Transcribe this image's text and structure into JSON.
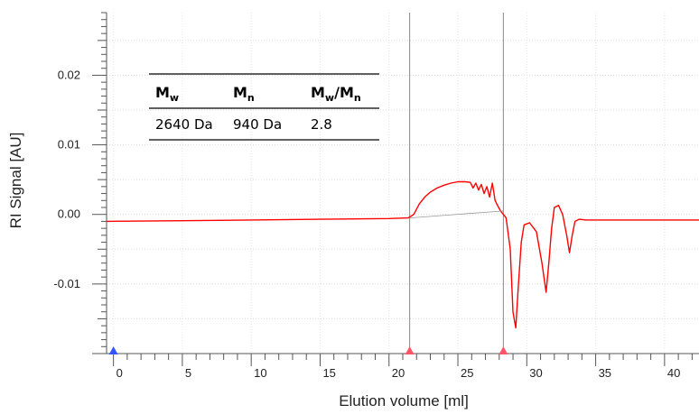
{
  "chart_data": {
    "type": "line",
    "xlabel": "Elution volume [ml]",
    "ylabel": "RI Signal [AU]",
    "xlim": [
      -0.5,
      42.5
    ],
    "ylim": [
      -0.02,
      0.029
    ],
    "x_ticks": [
      "0",
      "5",
      "10",
      "15",
      "20",
      "25",
      "30",
      "35",
      "40"
    ],
    "y_ticks": [
      "0.02",
      "0.01",
      "0.00",
      "-0.01"
    ],
    "y_tick_values": [
      0.02,
      0.01,
      0.0,
      -0.01
    ],
    "negative_tick_color": "#e02020",
    "grid": true,
    "series": [
      {
        "color": "#ff0000",
        "x": [
          -0.5,
          5,
          10,
          15,
          20,
          21.4,
          21.8,
          22.2,
          22.6,
          23.0,
          23.5,
          24.0,
          24.5,
          25.0,
          25.5,
          25.9,
          26.1,
          26.3,
          26.5,
          26.7,
          26.9,
          27.1,
          27.3,
          27.5,
          27.7,
          27.9,
          28.1,
          28.3,
          28.5,
          28.8,
          29.0,
          29.2,
          29.4,
          29.6,
          29.8,
          30.2,
          30.7,
          31.1,
          31.4,
          31.6,
          31.8,
          32.0,
          32.3,
          32.6,
          32.9,
          33.1,
          33.3,
          33.5,
          33.8,
          34.3,
          35,
          38,
          42.5
        ],
        "y": [
          -0.001,
          -0.0009,
          -0.0008,
          -0.0007,
          -0.0006,
          -0.0005,
          0.0,
          0.0015,
          0.0025,
          0.0032,
          0.0038,
          0.0042,
          0.0045,
          0.0047,
          0.0047,
          0.0046,
          0.0038,
          0.0045,
          0.0035,
          0.0043,
          0.003,
          0.004,
          0.0025,
          0.0045,
          0.002,
          0.0012,
          0.0005,
          0.0,
          -0.0005,
          -0.005,
          -0.014,
          -0.0163,
          -0.01,
          -0.004,
          -0.0015,
          -0.0012,
          -0.0025,
          -0.007,
          -0.0112,
          -0.007,
          -0.002,
          0.001,
          0.0013,
          0.0,
          -0.003,
          -0.0055,
          -0.003,
          -0.001,
          -0.0007,
          -0.0008,
          -0.0008,
          -0.0008,
          -0.0008
        ]
      },
      {
        "color": "#999999",
        "x": [
          21.5,
          28.3
        ],
        "y": [
          -0.0005,
          0.0005
        ]
      }
    ],
    "integration_markers_ml": [
      21.5,
      28.3
    ],
    "start_marker_ml": 0,
    "start_marker_color": "#3355ff",
    "integration_marker_color": "#ff5566"
  },
  "results_table": {
    "headers": [
      {
        "main": "M",
        "sub": "w"
      },
      {
        "main": "M",
        "sub": "n"
      },
      {
        "main": "M",
        "sub": "w",
        "slash": "/M",
        "sub2": "n"
      }
    ],
    "values": [
      "2640 Da",
      "940 Da",
      "2.8"
    ]
  }
}
